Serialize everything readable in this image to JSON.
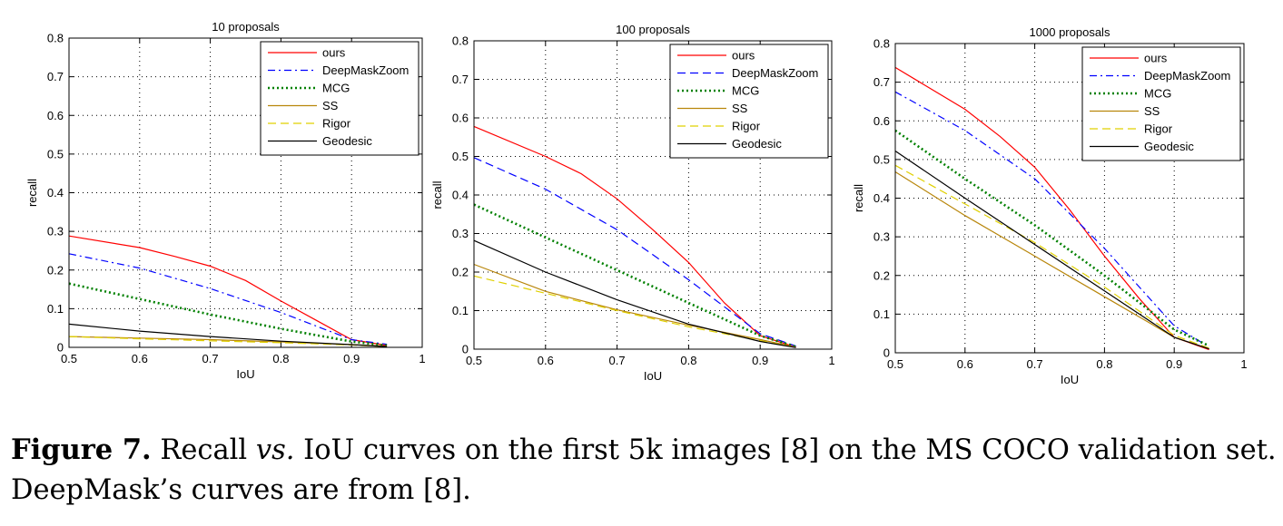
{
  "chart_data": [
    {
      "type": "line",
      "title": "10 proposals",
      "xlabel": "IoU",
      "ylabel": "recall",
      "xlim": [
        0.5,
        1
      ],
      "ylim": [
        0,
        0.8
      ],
      "xticks": [
        "0.5",
        "0.6",
        "0.7",
        "0.8",
        "0.9",
        "1"
      ],
      "yticks": [
        "0",
        "0.1",
        "0.2",
        "0.3",
        "0.4",
        "0.5",
        "0.6",
        "0.7",
        "0.8"
      ],
      "grid": true,
      "legend_position": "top-right",
      "series": [
        {
          "name": "ours",
          "color": "#ff0000",
          "style": "solid",
          "x": [
            0.5,
            0.6,
            0.65,
            0.7,
            0.75,
            0.8,
            0.85,
            0.9,
            0.95
          ],
          "y": [
            0.288,
            0.258,
            0.235,
            0.21,
            0.173,
            0.12,
            0.07,
            0.02,
            0.005
          ]
        },
        {
          "name": "DeepMaskZoom",
          "color": "#0000ff",
          "style": "dashdot",
          "x": [
            0.5,
            0.6,
            0.7,
            0.8,
            0.9,
            0.95
          ],
          "y": [
            0.242,
            0.205,
            0.152,
            0.09,
            0.02,
            0.008
          ]
        },
        {
          "name": "MCG",
          "color": "#008000",
          "style": "dotted",
          "x": [
            0.5,
            0.6,
            0.7,
            0.8,
            0.9,
            0.95
          ],
          "y": [
            0.165,
            0.125,
            0.085,
            0.048,
            0.015,
            0.005
          ]
        },
        {
          "name": "SS",
          "color": "#b8860b",
          "style": "solid",
          "x": [
            0.5,
            0.6,
            0.7,
            0.8,
            0.9,
            0.95
          ],
          "y": [
            0.028,
            0.024,
            0.02,
            0.014,
            0.007,
            0.003
          ]
        },
        {
          "name": "Rigor",
          "color": "#e0d000",
          "style": "dashed",
          "x": [
            0.5,
            0.6,
            0.7,
            0.8,
            0.9,
            0.95
          ],
          "y": [
            0.028,
            0.022,
            0.017,
            0.012,
            0.006,
            0.002
          ]
        },
        {
          "name": "Geodesic",
          "color": "#000000",
          "style": "solid",
          "x": [
            0.5,
            0.6,
            0.7,
            0.8,
            0.9,
            0.95
          ],
          "y": [
            0.06,
            0.042,
            0.028,
            0.016,
            0.007,
            0.002
          ]
        }
      ]
    },
    {
      "type": "line",
      "title": "100 proposals",
      "xlabel": "IoU",
      "ylabel": "recall",
      "xlim": [
        0.5,
        1
      ],
      "ylim": [
        0,
        0.8
      ],
      "xticks": [
        "0.5",
        "0.6",
        "0.7",
        "0.8",
        "0.9",
        "1"
      ],
      "yticks": [
        "0",
        "0.1",
        "0.2",
        "0.3",
        "0.4",
        "0.5",
        "0.6",
        "0.7",
        "0.8"
      ],
      "grid": true,
      "legend_position": "top-right",
      "series": [
        {
          "name": "ours",
          "color": "#ff0000",
          "style": "solid",
          "x": [
            0.5,
            0.6,
            0.65,
            0.7,
            0.75,
            0.8,
            0.85,
            0.9,
            0.95
          ],
          "y": [
            0.578,
            0.5,
            0.455,
            0.39,
            0.31,
            0.225,
            0.12,
            0.035,
            0.005
          ]
        },
        {
          "name": "DeepMaskZoom",
          "color": "#0000ff",
          "style": "dashed",
          "x": [
            0.5,
            0.6,
            0.7,
            0.8,
            0.9,
            0.95
          ],
          "y": [
            0.497,
            0.415,
            0.31,
            0.18,
            0.04,
            0.008
          ]
        },
        {
          "name": "MCG",
          "color": "#008000",
          "style": "dotted",
          "x": [
            0.5,
            0.6,
            0.7,
            0.8,
            0.9,
            0.95
          ],
          "y": [
            0.375,
            0.29,
            0.205,
            0.12,
            0.035,
            0.006
          ]
        },
        {
          "name": "SS",
          "color": "#b8860b",
          "style": "solid",
          "x": [
            0.5,
            0.6,
            0.7,
            0.8,
            0.9,
            0.95
          ],
          "y": [
            0.22,
            0.15,
            0.102,
            0.062,
            0.025,
            0.005
          ]
        },
        {
          "name": "Rigor",
          "color": "#e0d000",
          "style": "dashed",
          "x": [
            0.5,
            0.6,
            0.7,
            0.8,
            0.9,
            0.95
          ],
          "y": [
            0.19,
            0.145,
            0.1,
            0.058,
            0.022,
            0.004
          ]
        },
        {
          "name": "Geodesic",
          "color": "#000000",
          "style": "solid",
          "x": [
            0.5,
            0.6,
            0.7,
            0.8,
            0.9,
            0.95
          ],
          "y": [
            0.282,
            0.2,
            0.128,
            0.065,
            0.02,
            0.004
          ]
        }
      ]
    },
    {
      "type": "line",
      "title": "1000 proposals",
      "xlabel": "IoU",
      "ylabel": "recall",
      "xlim": [
        0.5,
        1
      ],
      "ylim": [
        0,
        0.8
      ],
      "xticks": [
        "0.5",
        "0.6",
        "0.7",
        "0.8",
        "0.9",
        "1"
      ],
      "yticks": [
        "0",
        "0.1",
        "0.2",
        "0.3",
        "0.4",
        "0.5",
        "0.6",
        "0.7",
        "0.8"
      ],
      "grid": true,
      "legend_position": "top-right",
      "series": [
        {
          "name": "ours",
          "color": "#ff0000",
          "style": "solid",
          "x": [
            0.5,
            0.6,
            0.65,
            0.7,
            0.75,
            0.8,
            0.85,
            0.9,
            0.95
          ],
          "y": [
            0.738,
            0.63,
            0.56,
            0.48,
            0.37,
            0.25,
            0.14,
            0.04,
            0.008
          ]
        },
        {
          "name": "DeepMaskZoom",
          "color": "#0000ff",
          "style": "dashdot",
          "x": [
            0.5,
            0.6,
            0.7,
            0.8,
            0.9,
            0.95
          ],
          "y": [
            0.675,
            0.575,
            0.45,
            0.27,
            0.07,
            0.015
          ]
        },
        {
          "name": "MCG",
          "color": "#008000",
          "style": "dotted",
          "x": [
            0.5,
            0.6,
            0.7,
            0.8,
            0.9,
            0.95
          ],
          "y": [
            0.575,
            0.45,
            0.33,
            0.2,
            0.06,
            0.018
          ]
        },
        {
          "name": "SS",
          "color": "#b8860b",
          "style": "solid",
          "x": [
            0.5,
            0.6,
            0.7,
            0.8,
            0.9,
            0.95
          ],
          "y": [
            0.468,
            0.355,
            0.25,
            0.145,
            0.04,
            0.01
          ]
        },
        {
          "name": "Rigor",
          "color": "#e0d000",
          "style": "dashed",
          "x": [
            0.5,
            0.6,
            0.7,
            0.8,
            0.9,
            0.95
          ],
          "y": [
            0.485,
            0.385,
            0.285,
            0.17,
            0.045,
            0.012
          ]
        },
        {
          "name": "Geodesic",
          "color": "#000000",
          "style": "solid",
          "x": [
            0.5,
            0.6,
            0.7,
            0.8,
            0.9,
            0.95
          ],
          "y": [
            0.522,
            0.4,
            0.28,
            0.16,
            0.04,
            0.01
          ]
        }
      ]
    }
  ],
  "caption": {
    "label": "Figure 7.",
    "text_1": " Recall ",
    "vs": "vs.",
    "text_2": " IoU curves on the first 5k images [8] on the MS COCO validation set. DeepMask’s curves are from [8]."
  }
}
